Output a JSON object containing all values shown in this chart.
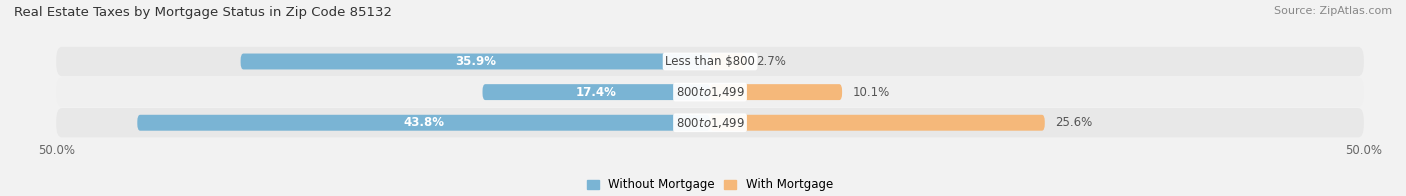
{
  "title": "Real Estate Taxes by Mortgage Status in Zip Code 85132",
  "source": "Source: ZipAtlas.com",
  "categories": [
    "Less than $800",
    "$800 to $1,499",
    "$800 to $1,499"
  ],
  "without_mortgage": [
    35.9,
    17.4,
    43.8
  ],
  "with_mortgage": [
    2.7,
    10.1,
    25.6
  ],
  "color_without": "#7ab4d4",
  "color_with": "#f5b87a",
  "xlim": [
    -50,
    50
  ],
  "bar_height": 0.52,
  "background_color": "#f2f2f2",
  "row_bg_color": "#e8e8e8",
  "row_bg_color2": "#f0f0f0",
  "title_fontsize": 9.5,
  "source_fontsize": 8,
  "label_fontsize": 8.5,
  "legend_fontsize": 8.5,
  "value_color_inside": "#ffffff",
  "value_color_outside": "#555555"
}
